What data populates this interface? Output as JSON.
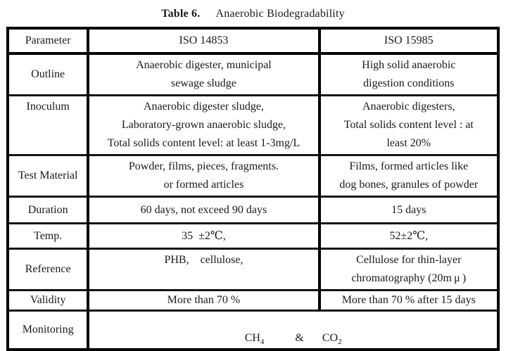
{
  "caption": {
    "prefix": "Table 6.",
    "title": "Anaerobic Biodegradability"
  },
  "table": {
    "headers": [
      "Parameter",
      "ISO 14853",
      "ISO 15985"
    ],
    "rows": [
      {
        "param": "Outline",
        "iso14853": "Anaerobic digester, municipal\nsewage sludge",
        "iso15985": "High solid anaerobic\ndigestion conditions"
      },
      {
        "param": "Inoculum",
        "iso14853": "Anaerobic digester sludge,\nLaboratory-grown anaerobic sludge,\nTotal solids content level: at least 1-3mg/L",
        "iso15985": "Anaerobic digesters,\nTotal solids content level : at\nleast 20%"
      },
      {
        "param": "Test Material",
        "iso14853": "Powder, films, pieces, fragments.\nor formed articles",
        "iso15985": "Films, formed articles like\ndog bones, granules of powder"
      },
      {
        "param": "Duration",
        "iso14853": "60 days, not exceed 90 days",
        "iso15985": "15 days"
      },
      {
        "param": "Temp.",
        "iso14853": "35 ±2℃,",
        "iso15985": "52±2℃,"
      },
      {
        "param": "Reference",
        "iso14853": "PHB, cellulose,",
        "iso15985": "Cellulose for thin-layer\nchromatography (20m μ )"
      },
      {
        "param": "Validity",
        "iso14853": "More than 70 %",
        "iso15985": "More than 70 % after 15 days"
      }
    ],
    "monitoring": {
      "param": "Monitoring",
      "gas1": "CH",
      "gas1_sub": "4",
      "separator": "&",
      "gas2": "CO",
      "gas2_sub": "2"
    }
  },
  "colors": {
    "background": "#ffffff",
    "text": "#1a1a1a",
    "border": "#000000"
  }
}
